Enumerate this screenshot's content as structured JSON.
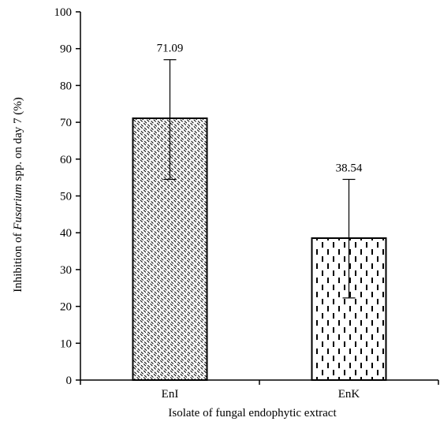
{
  "chart_data": {
    "type": "bar",
    "categories": [
      "EnI",
      "EnK"
    ],
    "values": [
      71.09,
      38.54
    ],
    "error_upper": [
      87.0,
      54.5
    ],
    "error_lower": [
      54.5,
      22.3
    ],
    "data_labels": [
      "71.09",
      "38.54"
    ],
    "xlabel": "Isolate of fungal endophytic extract",
    "ylabel": {
      "prefix": "Inhibition of ",
      "italic": "Fusarium",
      "suffix": " spp. on day 7 (%)"
    },
    "ylim": [
      0,
      100
    ],
    "yticks": [
      "0",
      "10",
      "20",
      "30",
      "40",
      "50",
      "60",
      "70",
      "80",
      "90",
      "100"
    ],
    "grid": false,
    "patterns": [
      "diagonal-dashed",
      "vertical-dashed"
    ]
  }
}
